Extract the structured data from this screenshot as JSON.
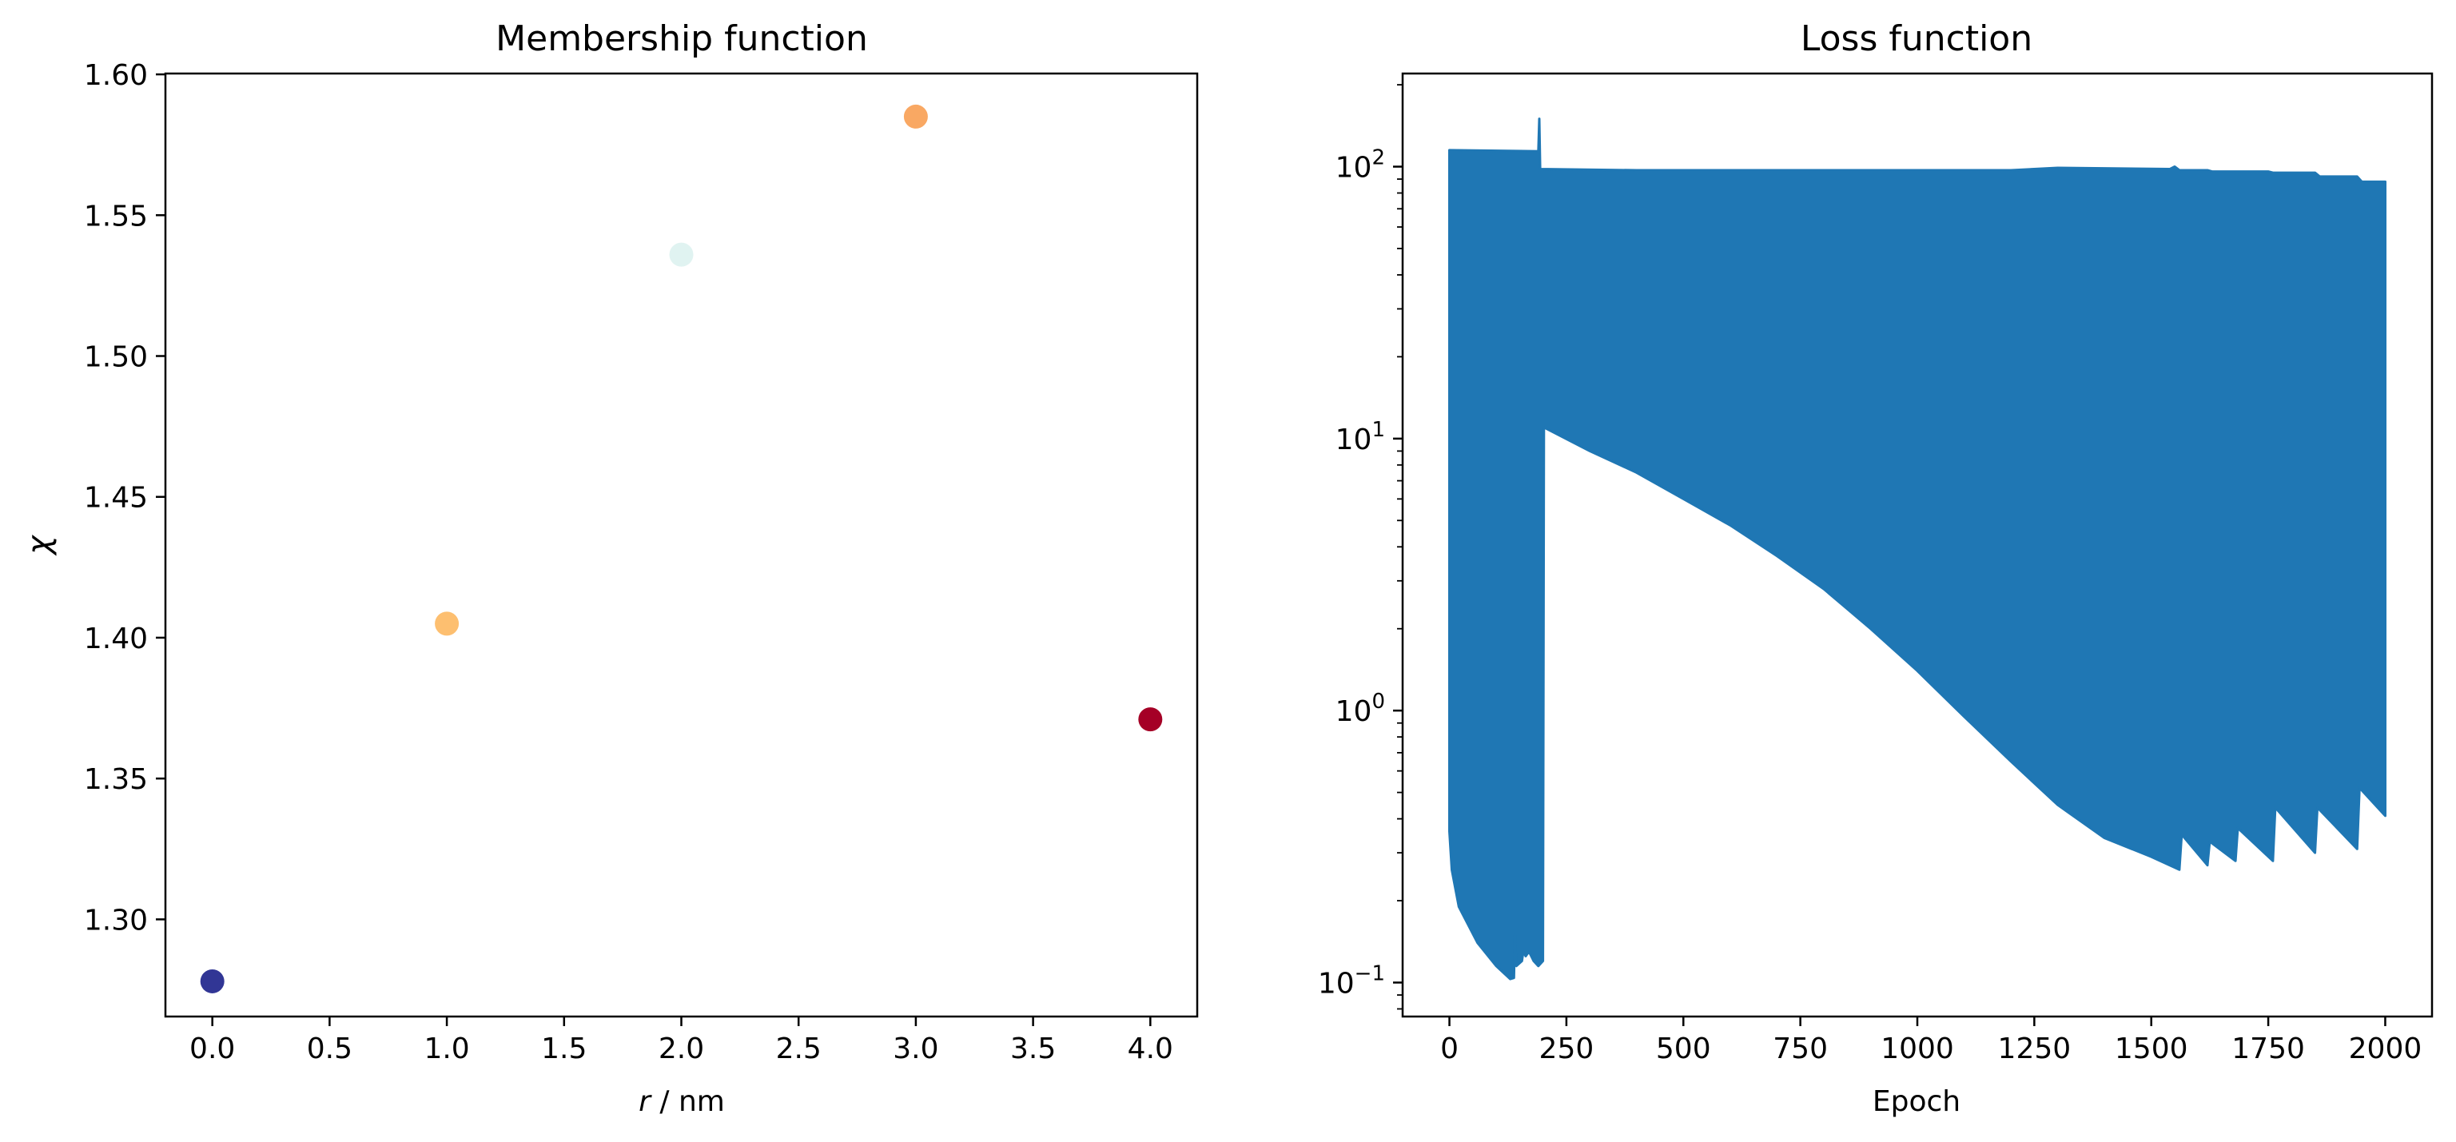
{
  "chart_data": [
    {
      "type": "scatter",
      "title": "Membership function",
      "xlabel_var": "r",
      "xlabel_unit": " / nm",
      "ylabel": "χ",
      "xlim": [
        -0.2,
        4.2
      ],
      "ylim": [
        1.2655,
        1.6003
      ],
      "x_ticks": [
        "0.0",
        "0.5",
        "1.0",
        "1.5",
        "2.0",
        "2.5",
        "3.0",
        "3.5",
        "4.0"
      ],
      "x_tick_values": [
        0,
        0.5,
        1,
        1.5,
        2,
        2.5,
        3,
        3.5,
        4
      ],
      "y_ticks": [
        "1.30",
        "1.35",
        "1.40",
        "1.45",
        "1.50",
        "1.55",
        "1.60"
      ],
      "y_tick_values": [
        1.3,
        1.35,
        1.4,
        1.45,
        1.5,
        1.55,
        1.6
      ],
      "points": [
        {
          "x": 0,
          "y": 1.278,
          "color": "#313695"
        },
        {
          "x": 1,
          "y": 1.405,
          "color": "#fdbf70"
        },
        {
          "x": 2,
          "y": 1.536,
          "color": "#e0f3f1"
        },
        {
          "x": 3,
          "y": 1.585,
          "color": "#f9a863"
        },
        {
          "x": 4,
          "y": 1.371,
          "color": "#a50026"
        }
      ],
      "grid": false
    },
    {
      "type": "area",
      "title": "Loss function",
      "xlabel": "Epoch",
      "ylabel": "",
      "yscale": "log",
      "xlim": [
        -100,
        2100
      ],
      "ylim": [
        0.075,
        220
      ],
      "x_ticks": [
        "0",
        "250",
        "500",
        "750",
        "1000",
        "1250",
        "1500",
        "1750",
        "2000"
      ],
      "x_tick_values": [
        0,
        250,
        500,
        750,
        1000,
        1250,
        1500,
        1750,
        2000
      ],
      "y_tick_exponents": [
        -1,
        0,
        1,
        2
      ],
      "y_tick_base": "10",
      "series": [
        {
          "color": "#1f77b4",
          "upper": [
            [
              0,
              115
            ],
            [
              190,
              114
            ],
            [
              192,
              150
            ],
            [
              194,
              98
            ],
            [
              400,
              97
            ],
            [
              800,
              97
            ],
            [
              1200,
              97
            ],
            [
              1300,
              99
            ],
            [
              1540,
              98
            ],
            [
              1550,
              100
            ],
            [
              1560,
              97
            ],
            [
              1620,
              97
            ],
            [
              1630,
              96
            ],
            [
              1750,
              96
            ],
            [
              1760,
              95
            ],
            [
              1850,
              95
            ],
            [
              1860,
              92
            ],
            [
              1940,
              92
            ],
            [
              1950,
              88
            ],
            [
              2000,
              88
            ]
          ],
          "lower": [
            [
              0,
              0.36
            ],
            [
              5,
              0.26
            ],
            [
              20,
              0.19
            ],
            [
              60,
              0.14
            ],
            [
              100,
              0.115
            ],
            [
              130,
              0.103
            ],
            [
              138,
              0.104
            ],
            [
              140,
              0.15
            ],
            [
              143,
              0.115
            ],
            [
              155,
              0.12
            ],
            [
              158,
              0.13
            ],
            [
              163,
              0.125
            ],
            [
              170,
              0.13
            ],
            [
              180,
              0.12
            ],
            [
              190,
              0.115
            ],
            [
              200,
              0.12
            ],
            [
              202,
              11
            ],
            [
              300,
              9
            ],
            [
              400,
              7.5
            ],
            [
              500,
              6.0
            ],
            [
              600,
              4.8
            ],
            [
              700,
              3.7
            ],
            [
              800,
              2.8
            ],
            [
              900,
              2.0
            ],
            [
              1000,
              1.4
            ],
            [
              1100,
              0.95
            ],
            [
              1200,
              0.65
            ],
            [
              1300,
              0.45
            ],
            [
              1400,
              0.34
            ],
            [
              1500,
              0.29
            ],
            [
              1560,
              0.26
            ],
            [
              1565,
              0.35
            ],
            [
              1620,
              0.27
            ],
            [
              1625,
              0.33
            ],
            [
              1680,
              0.28
            ],
            [
              1685,
              0.37
            ],
            [
              1760,
              0.28
            ],
            [
              1765,
              0.44
            ],
            [
              1850,
              0.3
            ],
            [
              1855,
              0.44
            ],
            [
              1940,
              0.31
            ],
            [
              1945,
              0.52
            ],
            [
              2000,
              0.41
            ]
          ]
        }
      ],
      "grid": false
    }
  ]
}
